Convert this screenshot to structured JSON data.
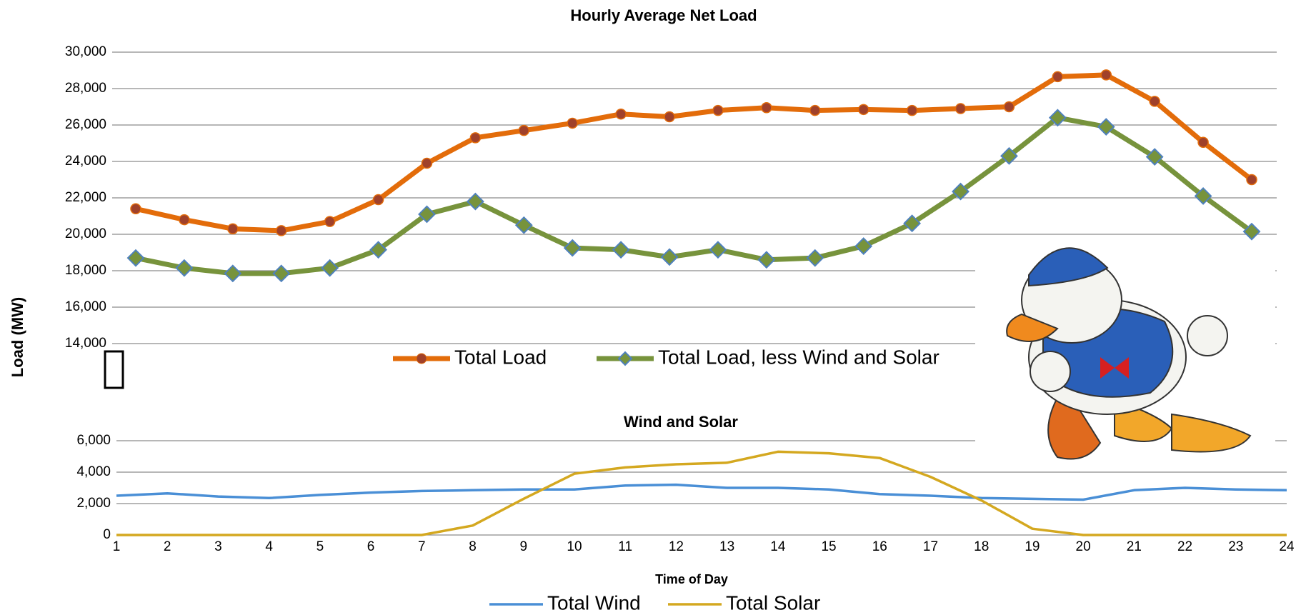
{
  "chart_data": [
    {
      "type": "line",
      "title": "Hourly Average Net Load",
      "y_label": "Load (MW)",
      "ylim": [
        14000,
        30000
      ],
      "yticks": [
        {
          "value": 14000,
          "label": "14,000"
        },
        {
          "value": 16000,
          "label": "16,000"
        },
        {
          "value": 18000,
          "label": "18,000"
        },
        {
          "value": 20000,
          "label": "20,000"
        },
        {
          "value": 22000,
          "label": "22,000"
        },
        {
          "value": 24000,
          "label": "24,000"
        },
        {
          "value": 26000,
          "label": "26,000"
        },
        {
          "value": 28000,
          "label": "28,000"
        },
        {
          "value": 30000,
          "label": "30,000"
        }
      ],
      "grid": true,
      "series": [
        {
          "name": "Total Load",
          "color": "#e36c0a",
          "marker": "circle",
          "marker_color": "#a0412a",
          "values": [
            21400,
            20800,
            20300,
            20200,
            20700,
            21900,
            23900,
            25300,
            25700,
            26100,
            26600,
            26450,
            26800,
            26950,
            26800,
            26850,
            26800,
            26900,
            27000,
            28650,
            28750,
            27300,
            25050,
            23000
          ]
        },
        {
          "name": "Total Load, less Wind and Solar",
          "color": "#77933c",
          "marker": "diamond",
          "marker_color": "#4f81bd",
          "values": [
            18700,
            18150,
            17850,
            17850,
            18150,
            19150,
            21100,
            21800,
            20500,
            19250,
            19150,
            18750,
            19150,
            18600,
            18700,
            19350,
            20600,
            22350,
            24300,
            26400,
            25900,
            24250,
            22100,
            20150
          ]
        }
      ]
    },
    {
      "type": "line",
      "title": "Wind and Solar",
      "x_label": "Time of Day",
      "x": [
        1,
        2,
        3,
        4,
        5,
        6,
        7,
        8,
        9,
        10,
        11,
        12,
        13,
        14,
        15,
        16,
        17,
        18,
        19,
        20,
        21,
        22,
        23,
        24
      ],
      "xlim": [
        1,
        24
      ],
      "xticks": [
        1,
        2,
        3,
        4,
        5,
        6,
        7,
        8,
        9,
        10,
        11,
        12,
        13,
        14,
        15,
        16,
        17,
        18,
        19,
        20,
        21,
        22,
        23,
        24
      ],
      "ylim": [
        0,
        6000
      ],
      "yticks": [
        0,
        {
          "value": 2000,
          "label": "2,000"
        },
        {
          "value": 4000,
          "label": "4,000"
        },
        {
          "value": 6000,
          "label": "6,000"
        }
      ],
      "grid": true,
      "series": [
        {
          "name": "Total Wind",
          "color": "#4a8fd6",
          "values": [
            2500,
            2650,
            2450,
            2350,
            2550,
            2700,
            2800,
            2850,
            2900,
            2900,
            3150,
            3200,
            3000,
            3000,
            2900,
            2600,
            2500,
            2350,
            2300,
            2250,
            2850,
            3000,
            2900,
            2850
          ]
        },
        {
          "name": "Total Solar",
          "color": "#d4a820",
          "values": [
            0,
            0,
            0,
            0,
            0,
            0,
            0,
            600,
            2300,
            3900,
            4300,
            4500,
            4600,
            5300,
            5200,
            4900,
            3700,
            2200,
            400,
            0,
            0,
            0,
            0,
            0
          ]
        }
      ]
    }
  ]
}
